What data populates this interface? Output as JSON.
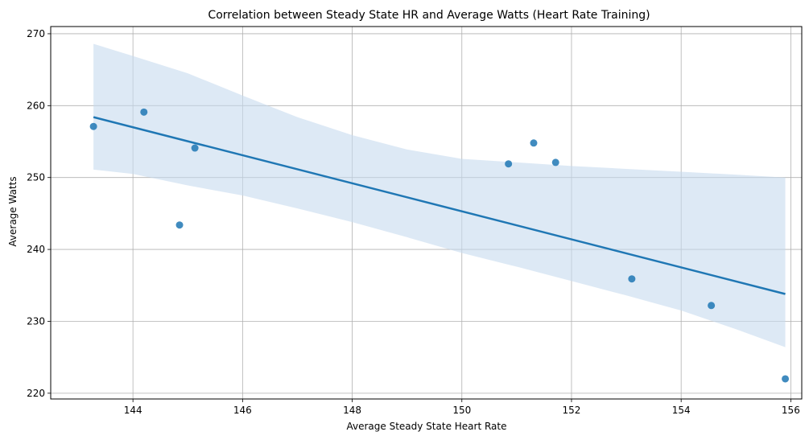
{
  "chart_data": {
    "type": "scatter",
    "title": "Correlation between Steady State HR and Average Watts (Heart Rate Training)",
    "xlabel": "Average Steady State Heart Rate",
    "ylabel": "Average Watts",
    "xlim": [
      142.5,
      156.2
    ],
    "ylim": [
      219.2,
      271
    ],
    "xticks": [
      144,
      146,
      148,
      150,
      152,
      154,
      156
    ],
    "yticks": [
      220,
      230,
      240,
      250,
      260,
      270
    ],
    "grid": true,
    "legend": "none",
    "colors": {
      "points": "#1f77b4",
      "line": "#1f77b4",
      "band": "#c6dbef"
    },
    "points": [
      {
        "x": 143.28,
        "y": 257.1
      },
      {
        "x": 144.2,
        "y": 259.1
      },
      {
        "x": 144.85,
        "y": 243.4
      },
      {
        "x": 145.13,
        "y": 254.1
      },
      {
        "x": 150.85,
        "y": 251.9
      },
      {
        "x": 151.31,
        "y": 254.8
      },
      {
        "x": 151.71,
        "y": 252.1
      },
      {
        "x": 153.1,
        "y": 235.9
      },
      {
        "x": 154.55,
        "y": 232.2
      },
      {
        "x": 155.9,
        "y": 222.0
      }
    ],
    "regression": {
      "x": [
        143.28,
        155.9
      ],
      "y": [
        258.4,
        233.8
      ]
    },
    "confidence_band": [
      {
        "x": 143.28,
        "lower": 251.1,
        "upper": 268.6
      },
      {
        "x": 144.0,
        "lower": 250.5,
        "upper": 266.9
      },
      {
        "x": 145.0,
        "lower": 248.9,
        "upper": 264.5
      },
      {
        "x": 146.0,
        "lower": 247.5,
        "upper": 261.4
      },
      {
        "x": 147.0,
        "lower": 245.7,
        "upper": 258.4
      },
      {
        "x": 148.0,
        "lower": 243.8,
        "upper": 255.9
      },
      {
        "x": 149.0,
        "lower": 241.7,
        "upper": 253.9
      },
      {
        "x": 150.0,
        "lower": 239.5,
        "upper": 252.6
      },
      {
        "x": 151.0,
        "lower": 237.6,
        "upper": 252.1
      },
      {
        "x": 152.0,
        "lower": 235.6,
        "upper": 251.6
      },
      {
        "x": 153.0,
        "lower": 233.6,
        "upper": 251.2
      },
      {
        "x": 154.0,
        "lower": 231.5,
        "upper": 250.8
      },
      {
        "x": 155.0,
        "lower": 228.9,
        "upper": 250.4
      },
      {
        "x": 155.9,
        "lower": 226.4,
        "upper": 250.0
      }
    ]
  }
}
